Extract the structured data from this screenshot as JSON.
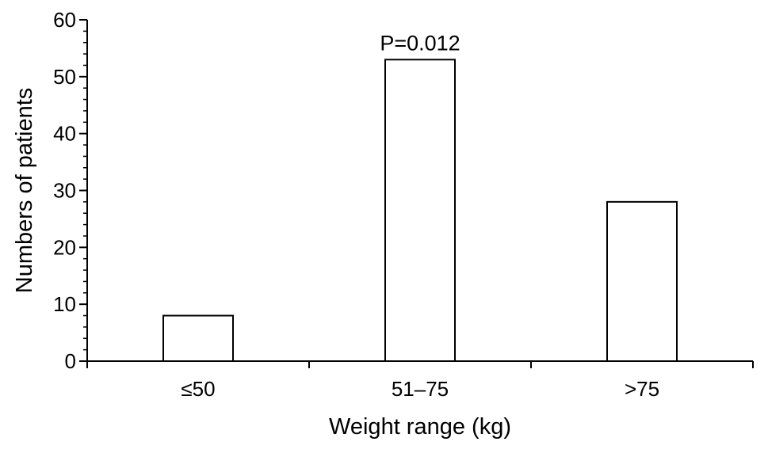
{
  "chart_data": {
    "type": "bar",
    "categories": [
      "≤50",
      "51–75",
      ">75"
    ],
    "values": [
      8,
      53,
      28
    ],
    "xlabel": "Weight range (kg)",
    "ylabel": "Numbers of patients",
    "ylim": [
      0,
      60
    ],
    "y_ticks": [
      "0",
      "10",
      "20",
      "30",
      "40",
      "50",
      "60"
    ],
    "minor_ticks_per_major": 5,
    "grid": false,
    "legend": "none",
    "annotation": {
      "text": "P=0.012",
      "category": "51–75"
    },
    "colors": {
      "bar_fill": "#ffffff",
      "bar_stroke": "#000000",
      "axis": "#000000"
    }
  }
}
